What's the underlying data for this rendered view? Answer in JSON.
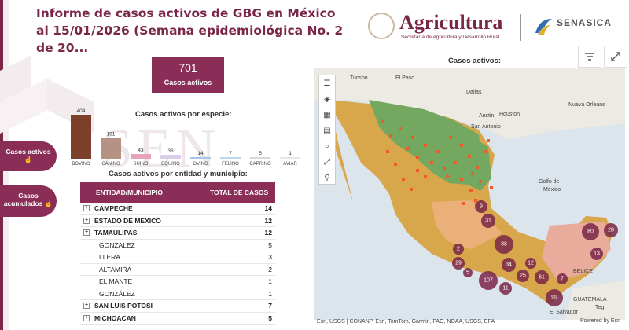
{
  "title": "Informe de casos activos de GBG en México al 15/01/2026 (Semana epidemiológica No. 2 de 20...",
  "header": {
    "agri_title": "Agricultura",
    "agri_subtitle": "Secretaría de Agricultura y Desarrollo Rural",
    "senasica": "SENASICA"
  },
  "kpi": {
    "value": "701",
    "label": "Casos activos"
  },
  "side_buttons": {
    "activos": "Casos activos",
    "acumulados": "Casos acumulados"
  },
  "chart_title": "Casos activos por especie:",
  "chart_data": {
    "type": "bar",
    "categories": [
      "BOVINO",
      "CANINO",
      "SUINO",
      "EQUINO",
      "OVINO",
      "FELINO",
      "CAPRINO",
      "AVIAR"
    ],
    "values": [
      404,
      191,
      43,
      36,
      14,
      7,
      5,
      1
    ],
    "colors": [
      "#7b3f2a",
      "#b59384",
      "#e8a2b8",
      "#d9cde8",
      "#a8c4e6",
      "#bcd6f0",
      "#d8d8d8",
      "#e6e6e6"
    ]
  },
  "table_title": "Casos activos por entidad y municipio:",
  "table": {
    "col1": "ENTIDAD/MUNICIPIO",
    "col2": "TOTAL DE CASOS",
    "rows": [
      {
        "name": "CAMPECHE",
        "value": "14",
        "group": true
      },
      {
        "name": "ESTADO DE MEXICO",
        "value": "12",
        "group": true
      },
      {
        "name": "TAMAULIPAS",
        "value": "12",
        "group": true
      },
      {
        "name": "GONZALEZ",
        "value": "5",
        "group": false
      },
      {
        "name": "LLERA",
        "value": "3",
        "group": false
      },
      {
        "name": "ALTAMIRA",
        "value": "2",
        "group": false
      },
      {
        "name": "EL MANTE",
        "value": "1",
        "group": false
      },
      {
        "name": "GONZÁLEZ",
        "value": "1",
        "group": false
      },
      {
        "name": "SAN LUIS POTOSI",
        "value": "7",
        "group": true
      },
      {
        "name": "MICHOACAN",
        "value": "5",
        "group": true
      }
    ]
  },
  "map": {
    "title": "Casos activos:",
    "attribution": "Esri, USGS | CONANP, Esri, TomTom, Garmin, FAO, NOAA, USGS, EPA",
    "powered": "Powered by Esri",
    "places": [
      "Tucson",
      "El Paso",
      "Dallas",
      "Austin",
      "Houston",
      "San Antonio",
      "Nueva Orleans",
      "Golfo de",
      "México",
      "BELICE",
      "GUATEMALA",
      "El Salvador",
      "Teg."
    ],
    "clusters": [
      "9",
      "31",
      "88",
      "34",
      "12",
      "2",
      "29",
      "5",
      "107",
      "11",
      "25",
      "61",
      "7",
      "80",
      "28",
      "13",
      "99"
    ]
  },
  "watermark": "SEN"
}
